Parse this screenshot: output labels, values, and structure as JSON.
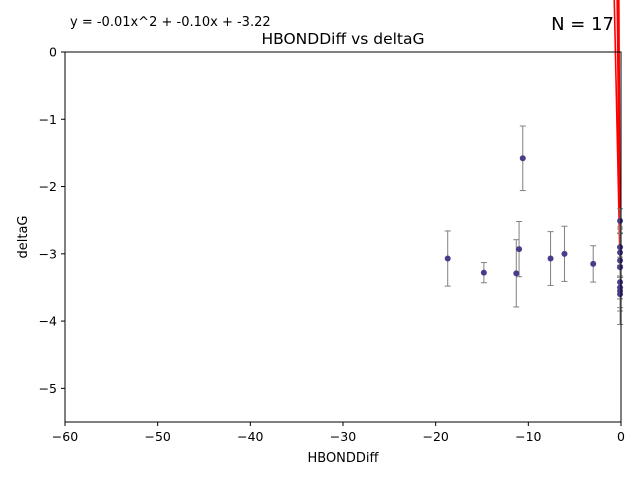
{
  "chart_data": {
    "type": "scatter",
    "title": "HBONDDiff vs deltaG",
    "xlabel": "HBONDDiff",
    "ylabel": "deltaG",
    "xlim": [
      -60,
      0
    ],
    "ylim": [
      -5.5,
      0
    ],
    "xticks": [
      -60,
      -50,
      -40,
      -30,
      -20,
      -10,
      0
    ],
    "yticks": [
      0,
      -1,
      -2,
      -3,
      -4,
      -5
    ],
    "xtick_labels": [
      "−60",
      "−50",
      "−40",
      "−30",
      "−20",
      "−10",
      "0"
    ],
    "ytick_labels": [
      "0",
      "−1",
      "−2",
      "−3",
      "−4",
      "−5"
    ],
    "grid": false,
    "equation": "y = -0.01x^2 + -0.10x + -3.22",
    "n_label": "N = 17",
    "point_color": "#483d8b",
    "errorbar_color": "#808080",
    "fit_color": "#ff0000",
    "points": [
      {
        "x": -18.7,
        "y": -3.07,
        "err": 0.41
      },
      {
        "x": -14.8,
        "y": -3.28,
        "err": 0.15
      },
      {
        "x": -11.3,
        "y": -3.29,
        "err": 0.5
      },
      {
        "x": -11.0,
        "y": -2.93,
        "err": 0.41
      },
      {
        "x": -10.6,
        "y": -1.58,
        "err": 0.48
      },
      {
        "x": -7.6,
        "y": -3.07,
        "err": 0.4
      },
      {
        "x": -6.1,
        "y": -3.0,
        "err": 0.41
      },
      {
        "x": -3.0,
        "y": -3.15,
        "err": 0.27
      },
      {
        "x": -0.1,
        "y": -2.51,
        "err": 0.18
      },
      {
        "x": -0.1,
        "y": -2.9,
        "err": 0.3
      },
      {
        "x": -0.1,
        "y": -2.98,
        "err": 0.35
      },
      {
        "x": -0.1,
        "y": -3.1,
        "err": 0.4
      },
      {
        "x": -0.1,
        "y": -3.2,
        "err": 0.3
      },
      {
        "x": -0.1,
        "y": -3.42,
        "err": 0.25
      },
      {
        "x": -0.1,
        "y": -3.5,
        "err": 0.3
      },
      {
        "x": -0.1,
        "y": -3.55,
        "err": 0.5
      },
      {
        "x": -0.1,
        "y": -3.6,
        "err": 0.25
      }
    ],
    "fit_x_order": [
      -18.7,
      -11.3,
      -14.8,
      -0.1,
      -10.6,
      -0.1,
      -7.6,
      -0.1,
      -11.0,
      -0.1,
      -6.1,
      -0.1,
      -3.0,
      -0.1
    ]
  }
}
